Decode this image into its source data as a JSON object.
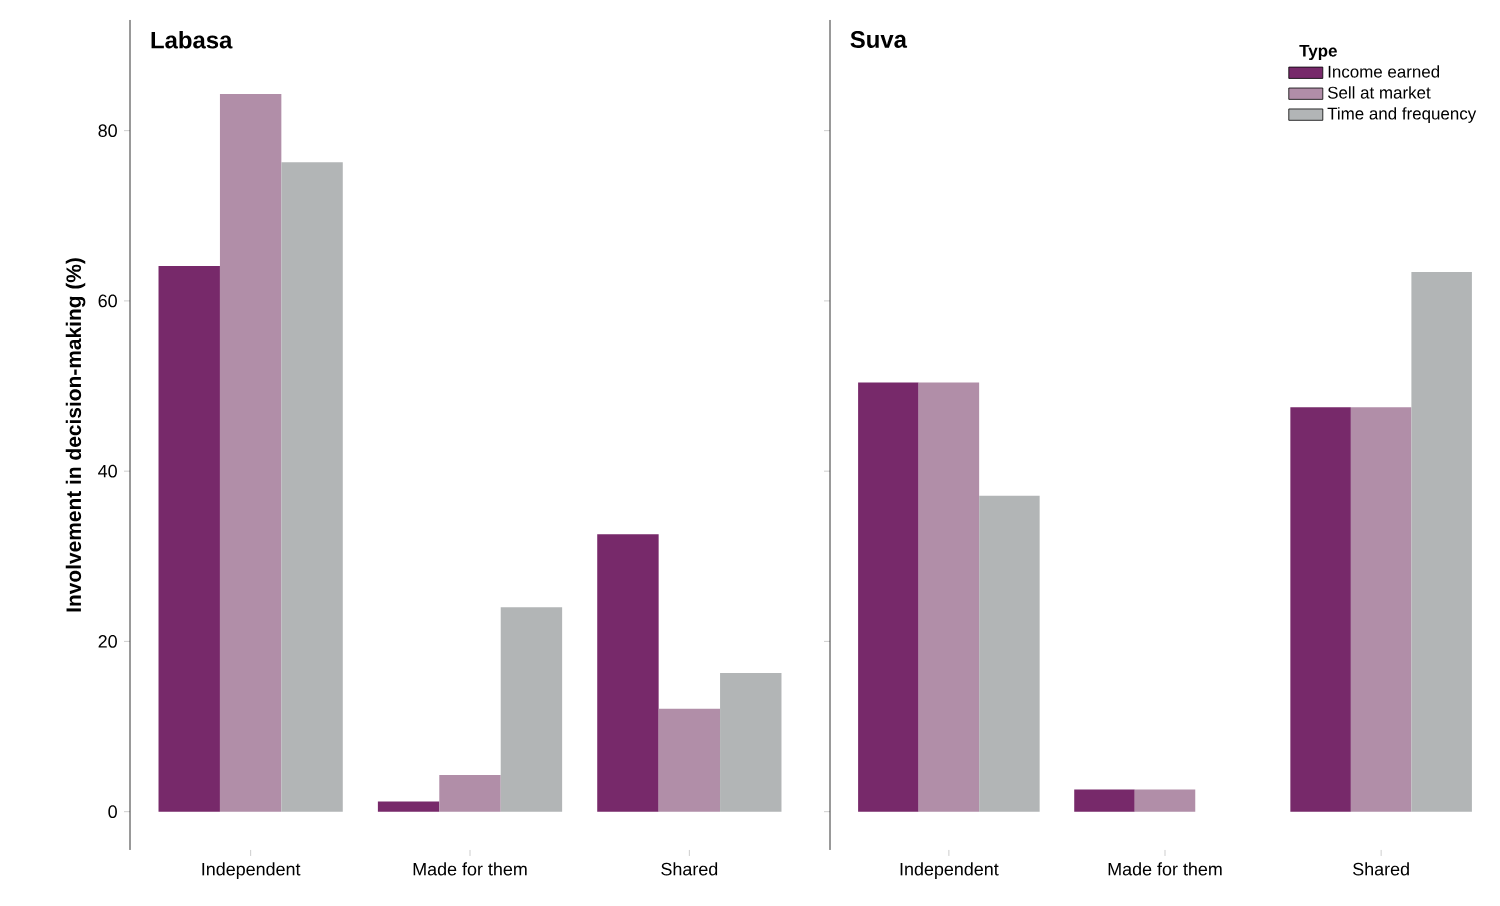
{
  "chart_data": [
    {
      "type": "bar",
      "title": "Labasa",
      "ylabel": "Involvement in decision-making (%)",
      "categories": [
        "Independent",
        "Made for them",
        "Shared"
      ],
      "ylim": [
        -4.5,
        93
      ],
      "yticks": [
        0,
        20,
        40,
        60,
        80
      ],
      "legend": false,
      "series": [
        {
          "color": "#77296a",
          "values": [
            64.1,
            1.2,
            32.6
          ]
        },
        {
          "color": "#b18ea8",
          "values": [
            84.3,
            4.3,
            12.1
          ]
        },
        {
          "color": "#b2b5b6",
          "values": [
            76.3,
            24.0,
            16.3
          ]
        }
      ]
    },
    {
      "type": "bar",
      "title": "Suva",
      "legend_title": "Type",
      "categories": [
        "Independent",
        "Made for them",
        "Shared"
      ],
      "ylim": [
        -4.5,
        93
      ],
      "yticks": [
        0,
        20,
        40,
        60,
        80
      ],
      "legend": "top right",
      "tick_labels": "x",
      "series": [
        {
          "name": "Income earned",
          "color": "#77296a",
          "values": [
            50.4,
            2.6,
            47.5
          ]
        },
        {
          "name": "Sell at market",
          "color": "#b18ea8",
          "values": [
            50.4,
            2.6,
            47.5
          ]
        },
        {
          "name": "Time and frequency",
          "color": "#b2b5b6",
          "values": [
            37.1,
            null,
            63.4
          ]
        }
      ]
    }
  ]
}
